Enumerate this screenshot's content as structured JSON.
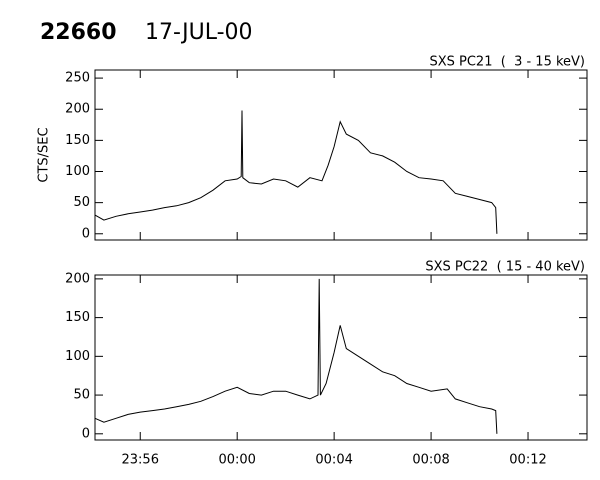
{
  "header": {
    "id": "22660",
    "date": "17-JUL-00"
  },
  "chart_data": [
    {
      "type": "line",
      "title": "SXS PC21  (  3 - 15 keV)",
      "ylabel": "CTS/SEC",
      "color": "#000000",
      "x": [
        "23:54:08",
        "23:54:30",
        "23:55:00",
        "23:55:30",
        "23:56:00",
        "23:56:30",
        "23:57:00",
        "23:57:30",
        "23:58:00",
        "23:58:30",
        "23:59:00",
        "23:59:30",
        "00:00:00",
        "00:00:10",
        "00:00:12",
        "00:00:14",
        "00:00:30",
        "00:01:00",
        "00:01:30",
        "00:02:00",
        "00:02:30",
        "00:03:00",
        "00:03:30",
        "00:03:45",
        "00:04:00",
        "00:04:15",
        "00:04:30",
        "00:05:00",
        "00:05:30",
        "00:06:00",
        "00:06:30",
        "00:07:00",
        "00:07:30",
        "00:08:00",
        "00:08:30",
        "00:09:00",
        "00:09:30",
        "00:10:00",
        "00:10:30",
        "00:10:40",
        "00:10:43"
      ],
      "values": [
        30,
        22,
        28,
        32,
        35,
        38,
        42,
        45,
        50,
        58,
        70,
        85,
        88,
        92,
        198,
        90,
        82,
        80,
        88,
        85,
        75,
        90,
        85,
        110,
        140,
        180,
        160,
        150,
        130,
        125,
        115,
        100,
        90,
        88,
        85,
        65,
        60,
        55,
        50,
        42,
        0
      ],
      "xlim": [
        "23:54:08",
        "00:14:26"
      ],
      "ylim": [
        -10,
        263
      ],
      "yticks": [
        0,
        50,
        100,
        150,
        200,
        250
      ]
    },
    {
      "type": "line",
      "title": "SXS PC22  ( 15 - 40 keV)",
      "color": "#000000",
      "x": [
        "23:54:08",
        "23:54:30",
        "23:55:00",
        "23:55:30",
        "23:56:00",
        "23:56:30",
        "23:57:00",
        "23:57:30",
        "23:58:00",
        "23:58:30",
        "23:59:00",
        "23:59:30",
        "00:00:00",
        "00:00:30",
        "00:01:00",
        "00:01:30",
        "00:02:00",
        "00:02:30",
        "00:03:00",
        "00:03:20",
        "00:03:23",
        "00:03:26",
        "00:03:40",
        "00:04:00",
        "00:04:15",
        "00:04:30",
        "00:05:00",
        "00:05:30",
        "00:06:00",
        "00:06:30",
        "00:07:00",
        "00:07:30",
        "00:08:00",
        "00:08:40",
        "00:09:00",
        "00:09:30",
        "00:10:00",
        "00:10:30",
        "00:10:40",
        "00:10:43"
      ],
      "values": [
        20,
        15,
        20,
        25,
        28,
        30,
        32,
        35,
        38,
        42,
        48,
        55,
        60,
        52,
        50,
        55,
        55,
        50,
        45,
        50,
        200,
        50,
        65,
        105,
        140,
        110,
        100,
        90,
        80,
        75,
        65,
        60,
        55,
        58,
        45,
        40,
        35,
        32,
        30,
        0
      ],
      "xlim": [
        "23:54:08",
        "00:14:26"
      ],
      "ylim": [
        -8,
        205
      ],
      "yticks": [
        0,
        50,
        100,
        150,
        200
      ],
      "xticks": [
        {
          "value": "23:56:00",
          "label": "23:56"
        },
        {
          "value": "00:00:00",
          "label": "00:00"
        },
        {
          "value": "00:04:00",
          "label": "00:04"
        },
        {
          "value": "00:08:00",
          "label": "00:08"
        },
        {
          "value": "00:12:00",
          "label": "00:12"
        }
      ]
    }
  ]
}
